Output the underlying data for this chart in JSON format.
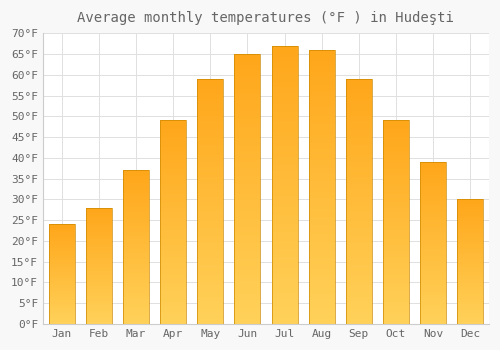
{
  "title": "Average monthly temperatures (°F ) in Hudeşti",
  "months": [
    "Jan",
    "Feb",
    "Mar",
    "Apr",
    "May",
    "Jun",
    "Jul",
    "Aug",
    "Sep",
    "Oct",
    "Nov",
    "Dec"
  ],
  "values": [
    24,
    28,
    37,
    49,
    59,
    65,
    67,
    66,
    59,
    49,
    39,
    30
  ],
  "bar_color_top": "#FFA500",
  "bar_color_bottom": "#FFD060",
  "bar_edge_color": "#CC8800",
  "background_color": "#f8f8f8",
  "plot_bg_color": "#ffffff",
  "grid_color": "#e0e0e0",
  "text_color": "#666666",
  "ylim": [
    0,
    70
  ],
  "yticks": [
    0,
    5,
    10,
    15,
    20,
    25,
    30,
    35,
    40,
    45,
    50,
    55,
    60,
    65,
    70
  ],
  "ylabel_suffix": "°F",
  "title_fontsize": 10,
  "tick_fontsize": 8,
  "figsize": [
    5.0,
    3.5
  ],
  "dpi": 100,
  "bar_width": 0.7
}
